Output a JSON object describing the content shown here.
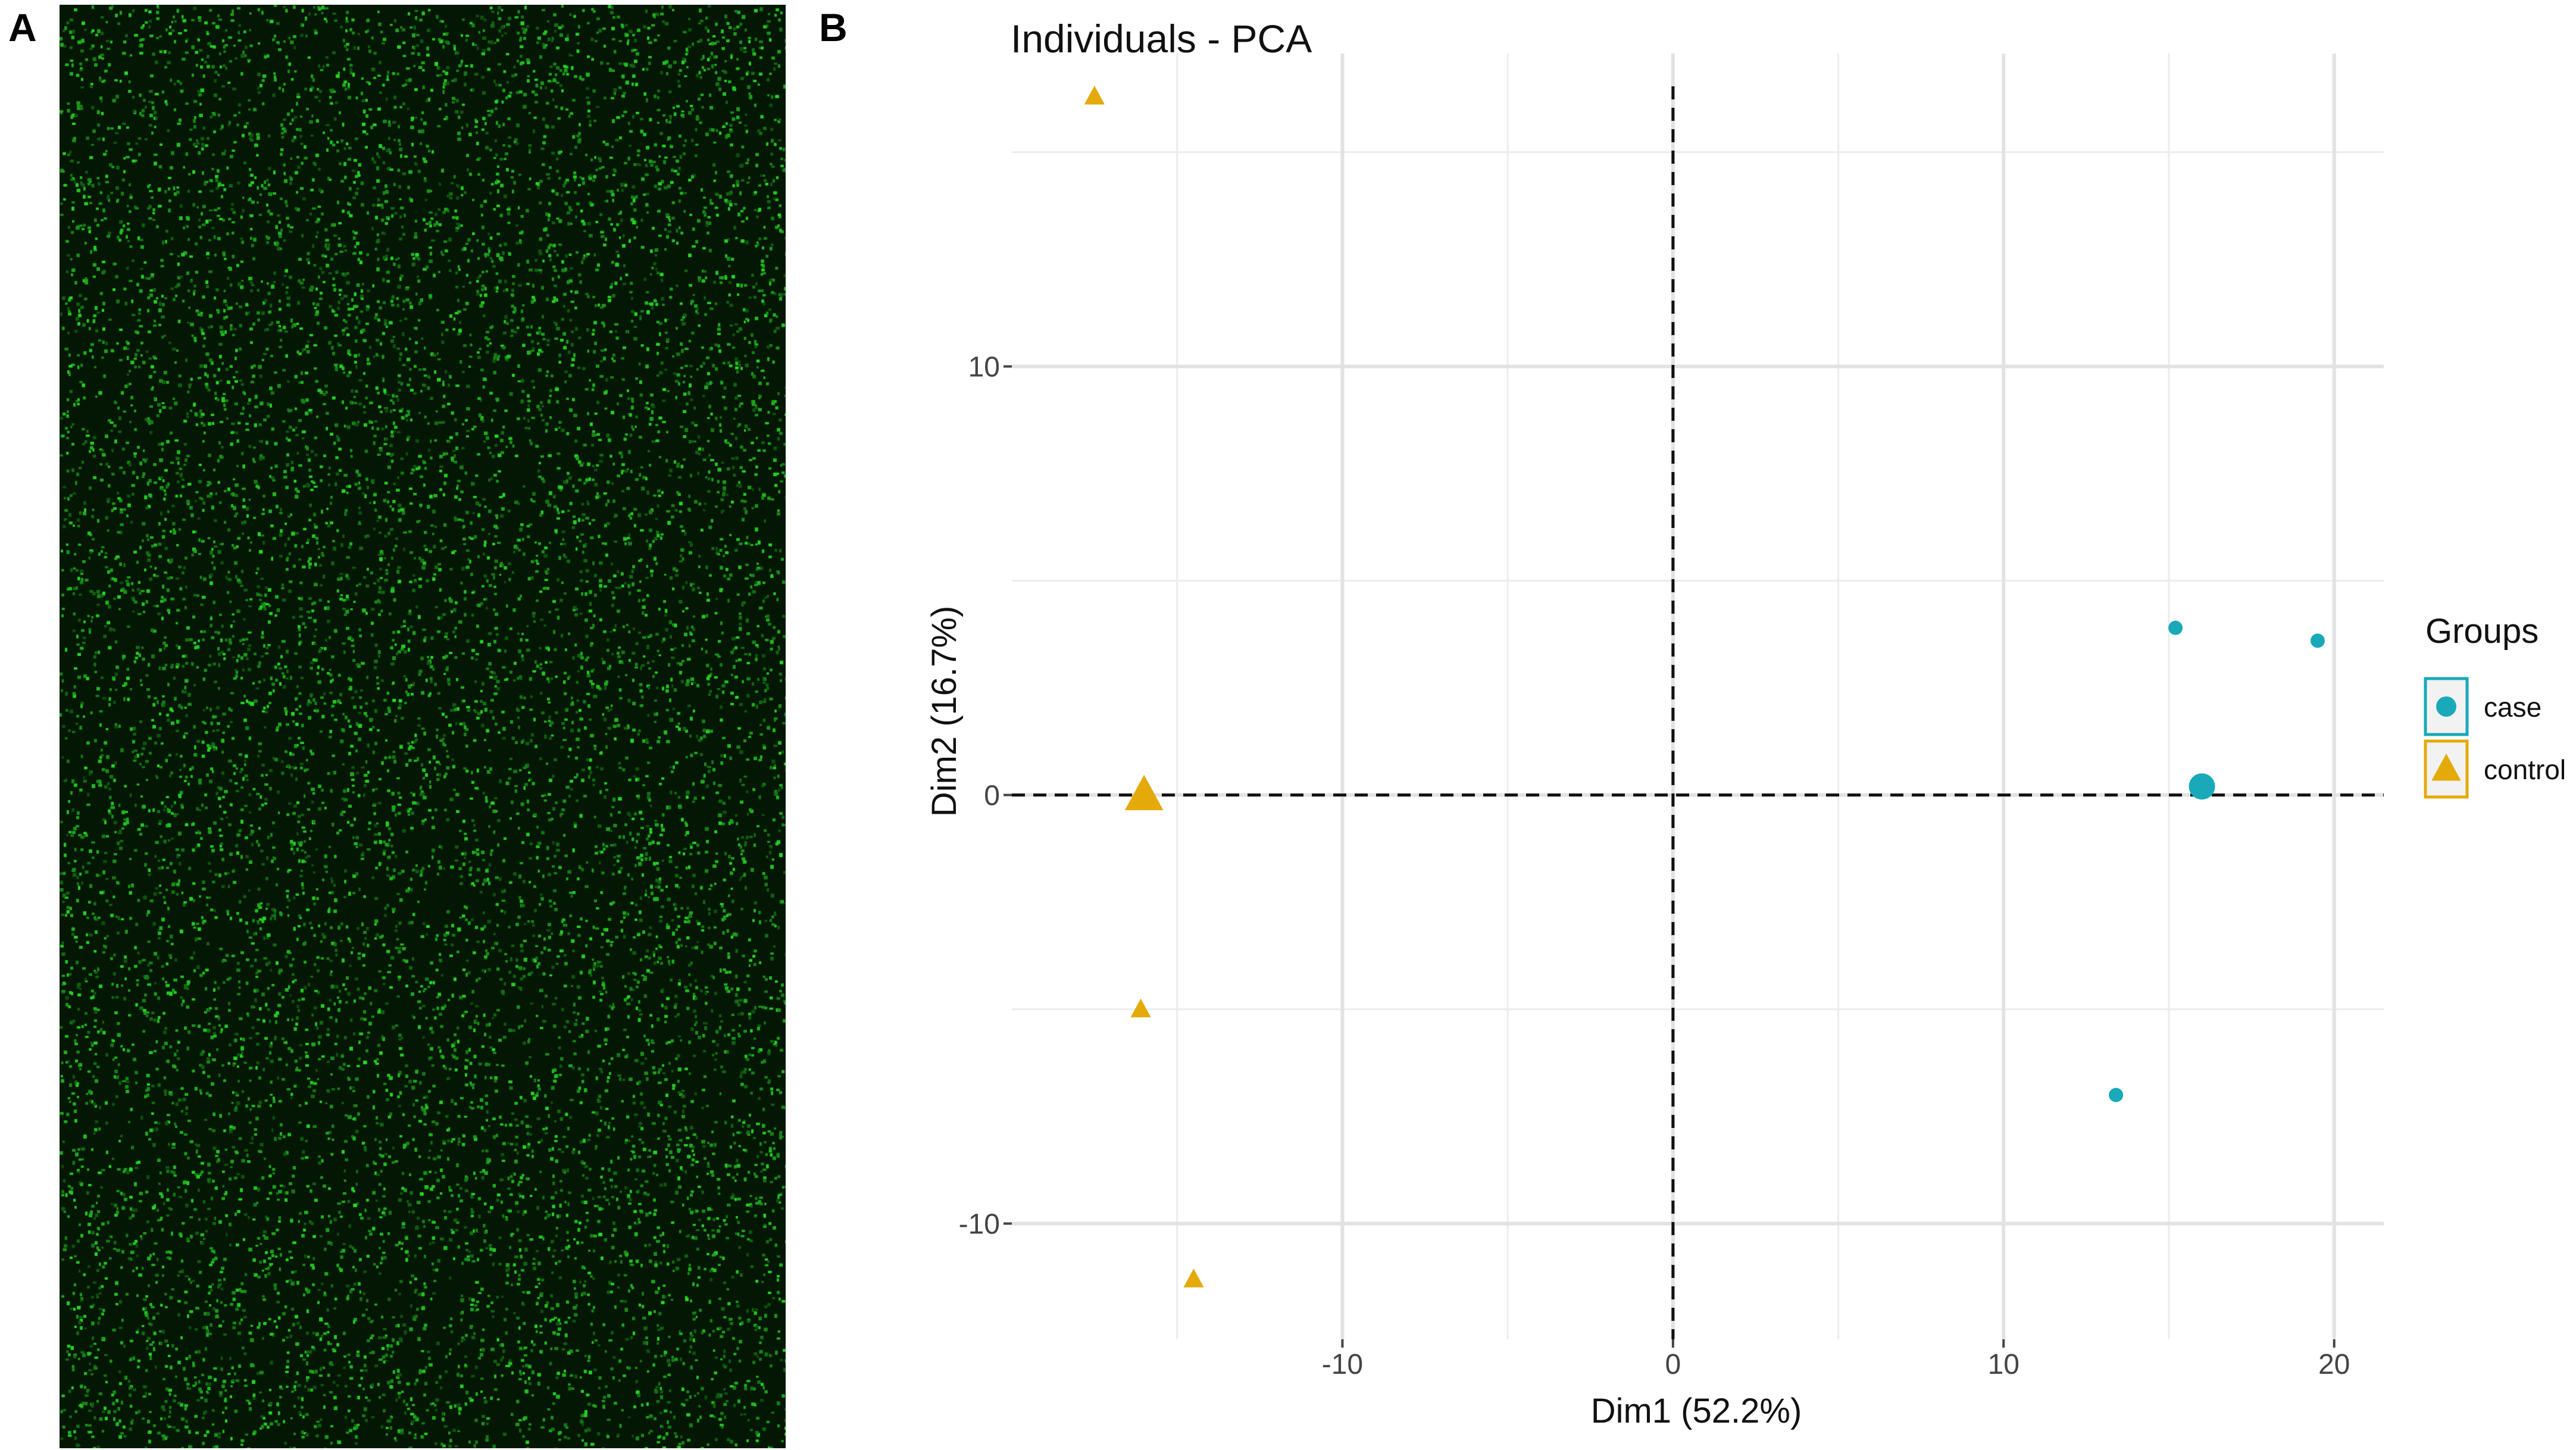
{
  "panels": {
    "a": {
      "label": "A"
    },
    "b": {
      "label": "B"
    }
  },
  "microarray": {
    "background": "#041704",
    "spot_color": "#2fd22f"
  },
  "chart_data": {
    "type": "scatter",
    "title": "Individuals - PCA",
    "xlabel": "Dim1 (52.2%)",
    "ylabel": "Dim2 (16.7%)",
    "xlim": [
      -20,
      21.5
    ],
    "ylim": [
      -12.7,
      17.3
    ],
    "xticks": [
      {
        "value": -10,
        "label": "-10"
      },
      {
        "value": 0,
        "label": "0"
      },
      {
        "value": 10,
        "label": "10"
      },
      {
        "value": 20,
        "label": "20"
      }
    ],
    "yticks": [
      {
        "value": -10,
        "label": "-10"
      },
      {
        "value": 0,
        "label": "0"
      },
      {
        "value": 10,
        "label": "10"
      }
    ],
    "grid": true,
    "reference_lines": {
      "x": 0,
      "y": 0,
      "style": "dashed"
    },
    "legend": {
      "title": "Groups",
      "position": "right",
      "entries": [
        {
          "name": "case",
          "shape": "circle",
          "color": "#19a9b8"
        },
        {
          "name": "control",
          "shape": "triangle",
          "color": "#e3aa09"
        }
      ]
    },
    "series": [
      {
        "name": "case",
        "shape": "circle",
        "color": "#19a9b8",
        "points": [
          {
            "x": 15.2,
            "y": 3.9
          },
          {
            "x": 19.5,
            "y": 3.6
          },
          {
            "x": 13.4,
            "y": -7.0
          }
        ],
        "centroid": {
          "x": 16.0,
          "y": 0.2
        }
      },
      {
        "name": "control",
        "shape": "triangle",
        "color": "#e3aa09",
        "points": [
          {
            "x": -17.5,
            "y": 16.3
          },
          {
            "x": -16.1,
            "y": -5.0
          },
          {
            "x": -14.5,
            "y": -11.3
          }
        ],
        "centroid": {
          "x": -16.0,
          "y": 0.0
        }
      }
    ]
  }
}
